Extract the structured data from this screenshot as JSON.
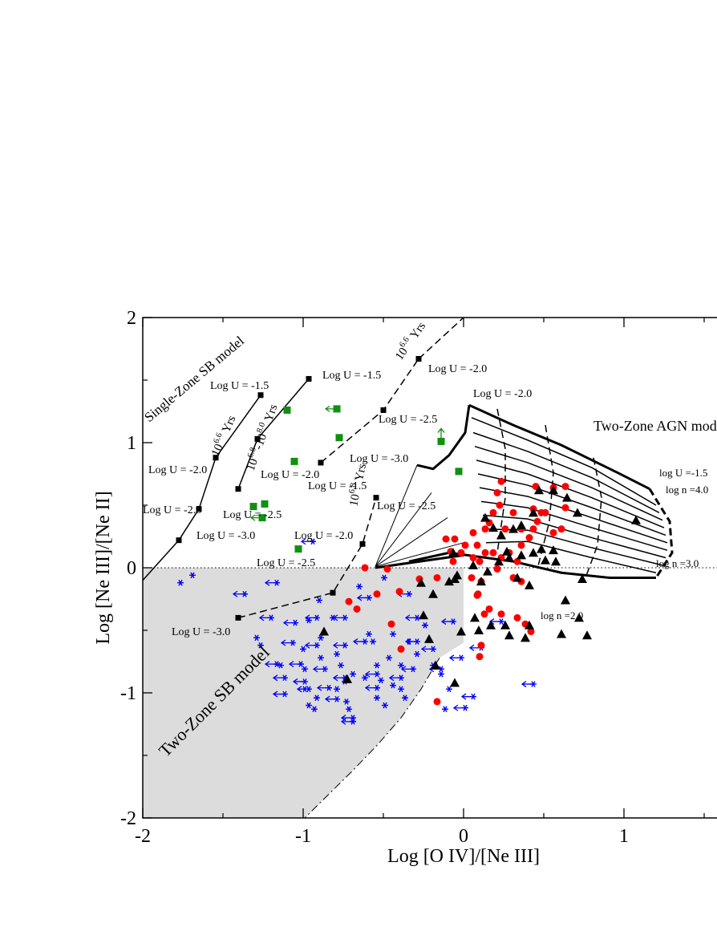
{
  "chart_data": {
    "type": "scatter",
    "x_label": "Log [O IV]/[Ne III]",
    "y_label": "Log [Ne III]/[Ne II]",
    "xlim": [
      -2,
      2
    ],
    "ylim": [
      -2,
      2
    ],
    "xticks": [
      -2,
      -1,
      0,
      1
    ],
    "yticks": [
      -2,
      -1,
      0,
      1,
      2
    ],
    "xminor": [
      -1.5,
      -0.5,
      0.5,
      1.5
    ],
    "yminor": [
      -1.5,
      -0.5,
      0.5,
      1.5
    ],
    "hline": 0,
    "region": {
      "color": "#dcdcdc",
      "x": [
        -2,
        0,
        0,
        -0.15,
        -0.265,
        -0.39,
        -0.54,
        -0.69,
        -0.84,
        -0.99,
        -2
      ],
      "y": [
        0,
        0,
        -0.6,
        -0.72,
        -0.97,
        -1.2,
        -1.42,
        -1.62,
        -1.81,
        -2,
        -2
      ]
    },
    "tracks": [
      {
        "dash": "dashdot",
        "width": 1,
        "markers": false,
        "x": [
          -0.15,
          -0.265,
          -0.39,
          -0.54,
          -0.69,
          -0.84,
          -0.99
        ],
        "y": [
          -0.72,
          -0.97,
          -1.2,
          -1.42,
          -1.62,
          -1.81,
          -2
        ]
      },
      {
        "dash": "solid",
        "width": 1.5,
        "markers": false,
        "x": [
          -2,
          -1.775
        ],
        "y": [
          -0.1,
          0.22
        ]
      },
      {
        "dash": "solid",
        "width": 1.5,
        "markers": true,
        "x": [
          -1.775,
          -1.65,
          -1.545,
          -1.265
        ],
        "y": [
          0.22,
          0.47,
          0.88,
          1.38
        ]
      },
      {
        "dash": "solid",
        "width": 1.5,
        "markers": true,
        "x": [
          -1.405,
          -1.285,
          -0.965
        ],
        "y": [
          0.63,
          1.03,
          1.51
        ]
      },
      {
        "dash": "dashed",
        "width": 1.5,
        "markers": true,
        "x": [
          -1.405,
          -0.815,
          -0.63,
          -0.545
        ],
        "y": [
          -0.4,
          -0.2,
          0.19,
          0.56
        ]
      },
      {
        "dash": "dashed",
        "width": 1.5,
        "markers": true,
        "x": [
          -0.89,
          -0.5,
          -0.28
        ],
        "y": [
          0.84,
          1.26,
          1.67
        ]
      },
      {
        "dash": "dashed",
        "width": 1.5,
        "markers": false,
        "x": [
          -0.28,
          0
        ],
        "y": [
          1.67,
          2
        ]
      },
      {
        "dash": "solid",
        "width": 3,
        "markers": false,
        "x": [
          -0.29,
          -0.19,
          -0.09,
          0.01,
          0.035
        ],
        "y": [
          0.82,
          0.79,
          0.9,
          1.08,
          1.3
        ]
      },
      {
        "dash": "solid",
        "width": 3,
        "markers": false,
        "x": [
          0.035,
          0.31,
          0.61,
          0.96,
          1.16
        ],
        "y": [
          1.3,
          1.14,
          0.98,
          0.76,
          0.63
        ]
      },
      {
        "dash": "dashed",
        "width": 3,
        "markers": false,
        "x": [
          1.16,
          1.285,
          1.3,
          1.2
        ],
        "y": [
          0.63,
          0.37,
          0.12,
          -0.08
        ]
      },
      {
        "dash": "solid",
        "width": 3,
        "markers": false,
        "x": [
          -0.34,
          -0.09,
          0.31,
          0.61,
          0.91,
          1.2
        ],
        "y": [
          0.05,
          0.12,
          0.05,
          -0.04,
          -0.08,
          -0.08
        ]
      },
      {
        "dash": "solid",
        "width": 3,
        "markers": false,
        "x": [
          -0.55,
          0
        ],
        "y": [
          0,
          0.1
        ]
      },
      {
        "dash": "solid",
        "width": 1,
        "markers": false,
        "x": [
          -0.55,
          -0.29
        ],
        "y": [
          0.01,
          0.82
        ]
      },
      {
        "dash": "solid",
        "width": 1,
        "markers": false,
        "x": [
          -0.55,
          -0.2
        ],
        "y": [
          0.01,
          0.6
        ]
      },
      {
        "dash": "solid",
        "width": 1,
        "markers": false,
        "x": [
          -0.55,
          -0.1
        ],
        "y": [
          0.01,
          0.4
        ]
      },
      {
        "dash": "solid",
        "width": 1,
        "markers": false,
        "x": [
          -0.55,
          0
        ],
        "y": [
          0.01,
          0.2
        ]
      },
      {
        "dash": "solid",
        "width": 1.5,
        "markers": false,
        "x": [
          0.05,
          0.4,
          0.8,
          1.2
        ],
        "y": [
          1.2,
          1.02,
          0.8,
          0.5
        ]
      },
      {
        "dash": "solid",
        "width": 1.5,
        "markers": false,
        "x": [
          0.06,
          0.4,
          0.8,
          1.22
        ],
        "y": [
          1.08,
          0.93,
          0.72,
          0.44
        ]
      },
      {
        "dash": "solid",
        "width": 1.5,
        "markers": false,
        "x": [
          0.07,
          0.4,
          0.8,
          1.24
        ],
        "y": [
          0.97,
          0.84,
          0.64,
          0.38
        ]
      },
      {
        "dash": "solid",
        "width": 1.5,
        "markers": false,
        "x": [
          0.08,
          0.4,
          0.8,
          1.25
        ],
        "y": [
          0.86,
          0.75,
          0.56,
          0.32
        ]
      },
      {
        "dash": "solid",
        "width": 1.5,
        "markers": false,
        "x": [
          0.09,
          0.4,
          0.8,
          1.26
        ],
        "y": [
          0.75,
          0.66,
          0.48,
          0.26
        ]
      },
      {
        "dash": "solid",
        "width": 1.5,
        "markers": false,
        "x": [
          0.1,
          0.4,
          0.8,
          1.27
        ],
        "y": [
          0.64,
          0.57,
          0.4,
          0.2
        ]
      },
      {
        "dash": "solid",
        "width": 1.5,
        "markers": false,
        "x": [
          0.11,
          0.4,
          0.8,
          1.27
        ],
        "y": [
          0.53,
          0.48,
          0.32,
          0.14
        ]
      },
      {
        "dash": "solid",
        "width": 1.5,
        "markers": false,
        "x": [
          0.12,
          0.4,
          0.8,
          1.26
        ],
        "y": [
          0.42,
          0.39,
          0.24,
          0.08
        ]
      },
      {
        "dash": "solid",
        "width": 1.5,
        "markers": false,
        "x": [
          0.13,
          0.4,
          0.8,
          1.24
        ],
        "y": [
          0.31,
          0.3,
          0.16,
          0.02
        ]
      },
      {
        "dash": "solid",
        "width": 1.5,
        "markers": false,
        "x": [
          0.14,
          0.4,
          0.8,
          1.2
        ],
        "y": [
          0.2,
          0.21,
          0.08,
          -0.04
        ]
      },
      {
        "dash": "dashed",
        "width": 1.5,
        "markers": false,
        "x": [
          0.21,
          0.26,
          0.26,
          0.21
        ],
        "y": [
          1.27,
          0.95,
          0.56,
          0.12
        ]
      },
      {
        "dash": "dashed",
        "width": 1.5,
        "markers": false,
        "x": [
          0.51,
          0.56,
          0.535,
          0.46
        ],
        "y": [
          1.14,
          0.76,
          0.37,
          -0.01
        ]
      },
      {
        "dash": "dashed",
        "width": 1.5,
        "markers": false,
        "x": [
          0.81,
          0.86,
          0.835,
          0.76
        ],
        "y": [
          0.88,
          0.56,
          0.18,
          -0.08
        ]
      }
    ],
    "series": [
      {
        "marker": "star",
        "color": "#0000ff",
        "x": [
          -1.69,
          -1.765,
          -0.495,
          -0.65,
          -0.9,
          -0.965,
          -0.89,
          -1.29,
          -1.265,
          -1.0,
          -0.89,
          -0.59,
          -0.465,
          -0.54,
          -1.14,
          -0.99,
          -0.765,
          -0.69,
          -0.615,
          -0.515,
          -0.44,
          -0.39,
          -0.99,
          -0.915,
          -0.79,
          -0.74,
          -0.73,
          -0.715,
          -0.965,
          -0.93,
          -0.39,
          -0.34,
          -0.29,
          -0.24,
          -0.49,
          -0.09,
          -0.115,
          -0.14,
          -0.19,
          -0.365,
          -0.54,
          -0.565,
          -0.44,
          -0.79,
          -0.815
        ],
        "y": [
          -0.06,
          -0.12,
          -0.08,
          -0.15,
          -0.26,
          -0.42,
          -0.56,
          -0.56,
          -0.62,
          -0.65,
          -0.72,
          -0.53,
          -0.72,
          -0.78,
          -0.78,
          -0.81,
          -0.78,
          -0.85,
          -0.88,
          -0.9,
          -0.94,
          -0.97,
          -0.97,
          -1.04,
          -0.97,
          -0.91,
          -1.07,
          -1.13,
          -1.1,
          -1.13,
          -0.78,
          -0.59,
          -0.69,
          -0.46,
          -1.1,
          -0.97,
          -1.13,
          -0.85,
          -0.78,
          -1.04,
          -1.04,
          -0.59,
          -0.53,
          -0.69,
          -0.4
        ]
      },
      {
        "marker": "star",
        "color": "#0000ff",
        "arrow": "left",
        "x": [
          -0.94,
          -1.165,
          -1.365,
          -1.2,
          -1.05,
          -0.915,
          -0.74,
          -0.59,
          -0.34,
          -0.29,
          -1.065,
          -0.915,
          -0.74,
          -0.615,
          -0.29,
          -0.19,
          -0.065,
          -0.015,
          -1.165,
          -1.015,
          -0.865,
          -1.115,
          -0.74,
          -0.54,
          -0.315,
          -0.14,
          -0.99,
          -0.84,
          -0.54,
          -0.39,
          -1.115,
          -0.965,
          -0.79,
          -0.69,
          0.06,
          0.01,
          0.235,
          0.435,
          0.11,
          -0.69
        ],
        "y": [
          0.21,
          -0.12,
          -0.21,
          -0.4,
          -0.44,
          -0.4,
          -0.4,
          -0.24,
          -0.21,
          -0.4,
          -0.6,
          -0.62,
          -0.62,
          -0.59,
          -0.59,
          -0.65,
          -0.43,
          -0.72,
          -0.77,
          -0.77,
          -0.81,
          -0.88,
          -0.88,
          -0.85,
          -0.81,
          -0.81,
          -0.91,
          -0.96,
          -0.96,
          -0.88,
          -1.01,
          -0.97,
          -1.05,
          -1.2,
          -1.03,
          -1.12,
          -0.43,
          -0.93,
          -0.64,
          -1.23
        ]
      },
      {
        "marker": "circle",
        "color": "#ff0000",
        "x": [
          -0.615,
          -0.475,
          -0.715,
          -0.665,
          -0.4,
          -0.45,
          -0.39,
          -0.275,
          -0.165,
          -0.065,
          -0.015,
          0.01,
          0.06,
          0.1,
          0.05,
          0.11,
          0.09,
          0.16,
          0.13,
          0.1,
          0.11,
          -0.165,
          0.235,
          0.21,
          0.225,
          0.185,
          0.16,
          0.135,
          0.06,
          0.085,
          0.135,
          0.185,
          0.235,
          0.285,
          0.335,
          0.36,
          0.41,
          0.435,
          0.46,
          0.485,
          0.56,
          0.61,
          0.31,
          0.36,
          0.21,
          0.335,
          0.385,
          0.42,
          0.235,
          0.26,
          0.31,
          0.36,
          0.435,
          0.51,
          0.635,
          0.56,
          0.45,
          0.635,
          -0.08,
          -0.055,
          -0.11,
          0.085,
          -0.54
        ],
        "y": [
          0,
          -0.01,
          -0.27,
          -0.33,
          -0.19,
          -0.45,
          -0.65,
          -0.09,
          -0.08,
          0.05,
          0.12,
          0.18,
          0.08,
          0.05,
          -0.08,
          -0.11,
          -0.21,
          -0.33,
          -0.37,
          -0.71,
          -0.62,
          -1.07,
          0.69,
          0.6,
          0.5,
          0.44,
          0.36,
          0.31,
          0.28,
          0.18,
          0.12,
          0.12,
          0.08,
          0.12,
          0.05,
          0.18,
          0.24,
          0.31,
          0.37,
          0.44,
          0.28,
          0.31,
          -0.08,
          -0.11,
          -0.01,
          -0.4,
          -0.45,
          -0.51,
          -0.37,
          0.31,
          0.44,
          0.31,
          0.47,
          0.44,
          0.48,
          0.64,
          0.65,
          0.65,
          0.13,
          0.23,
          0.23,
          -0.22,
          -0.21
        ]
      },
      {
        "marker": "triangle",
        "color": "#000000",
        "x": [
          -0.725,
          -0.87,
          -0.265,
          -0.19,
          -0.09,
          -0.25,
          -0.215,
          -0.175,
          -0.055,
          -0.015,
          -0.055,
          -0.065,
          -0.04,
          0.07,
          0.095,
          0.17,
          0.26,
          0.285,
          0.385,
          0.41,
          0.61,
          0.72,
          0.77,
          0.635,
          0.74,
          0.575,
          0.51,
          0.435,
          0.36,
          0.285,
          0.22,
          0.15,
          0.06,
          0.135,
          0.185,
          0.235,
          0.31,
          0.36,
          0.435,
          0.47,
          0.56,
          0.645,
          0.485,
          0.71,
          1.075,
          0.56,
          0.27,
          0.335,
          0.11,
          0.41
        ],
        "y": [
          -0.89,
          -0.51,
          -0.12,
          -0.21,
          -0.11,
          -0.38,
          -0.57,
          -0.78,
          -0.92,
          -0.51,
          -0.09,
          0.12,
          -0.06,
          -0.4,
          -0.5,
          -0.46,
          -0.46,
          -0.54,
          -0.56,
          -0.46,
          -0.53,
          -0.4,
          -0.54,
          -0.26,
          -0.09,
          0.05,
          0.06,
          0.12,
          0.1,
          0.08,
          0.05,
          -0.03,
          0.02,
          0.4,
          0.32,
          0.26,
          0.31,
          0.34,
          0.44,
          0.62,
          0.62,
          0.56,
          0.15,
          0.44,
          0.38,
          0.14,
          0.13,
          -0.08,
          -0.11,
          -0.14
        ]
      },
      {
        "marker": "square",
        "color": "#109010",
        "x": [
          -1.1,
          -1.24,
          -1.31,
          -1.03,
          -1.055,
          -0.775,
          -0.03
        ],
        "y": [
          1.26,
          0.51,
          0.49,
          0.15,
          0.85,
          1.04,
          0.77
        ]
      },
      {
        "marker": "square",
        "color": "#109010",
        "arrow": "left",
        "x": [
          -0.79,
          -1.255
        ],
        "y": [
          1.27,
          0.4
        ]
      },
      {
        "marker": "square",
        "color": "#109010",
        "arrow": "up",
        "x": [
          -0.14
        ],
        "y": [
          1.01
        ]
      }
    ],
    "annotations": [
      {
        "text": "Single-Zone SB model"
      },
      {
        "text": "Log U = -1.5"
      },
      {
        "text": "Log U = -1.5"
      },
      {
        "text": "Log U = -2.0"
      },
      {
        "text": "Log U = -2.0"
      },
      {
        "text": "Log U = -2.0"
      },
      {
        "text": "Log U = -2.0"
      },
      {
        "text": "Log U = -2.5"
      },
      {
        "text": "Log U = -2.5"
      },
      {
        "text": "Log U = -2.5"
      },
      {
        "text": "Log U = -2.5"
      },
      {
        "text": "Log U = -3.0"
      },
      {
        "text": "Log U = -3.0"
      },
      {
        "text": "Log U = -1.5"
      },
      {
        "text": "Log U = -2.0"
      },
      {
        "text": "Log U = -2.5"
      },
      {
        "text": "Log U = -3.0"
      },
      {
        "text": "Two-Zone AGN model"
      },
      {
        "text": "log U =-1.5"
      },
      {
        "text": "log n =4.0"
      },
      {
        "text": "log n =3.0"
      },
      {
        "text": "log n =2.0"
      },
      {
        "text": "Two-Zone SB model"
      },
      {
        "parts": [
          "10",
          "6.6",
          "Yrs"
        ]
      },
      {
        "parts": [
          "10",
          "6.8",
          "-10",
          "8.0",
          "Yrs"
        ]
      },
      {
        "parts": [
          "10",
          "6.6",
          "Yrs"
        ]
      },
      {
        "parts": [
          "10",
          "6.8",
          "Yrs"
        ]
      }
    ]
  }
}
